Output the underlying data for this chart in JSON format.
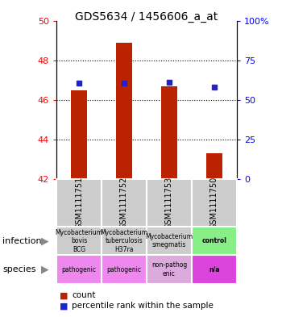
{
  "title": "GDS5634 / 1456606_a_at",
  "samples": [
    "GSM1111751",
    "GSM1111752",
    "GSM1111753",
    "GSM1111750"
  ],
  "bar_bottoms": [
    42,
    42,
    42,
    42
  ],
  "bar_tops": [
    46.5,
    48.9,
    46.7,
    43.3
  ],
  "bar_color": "#bb2200",
  "dot_values": [
    46.85,
    46.85,
    46.9,
    46.65
  ],
  "dot_color": "#2222cc",
  "ylim": [
    42,
    50
  ],
  "yticks_left": [
    42,
    44,
    46,
    48,
    50
  ],
  "yticks_right_labels": [
    "0",
    "25",
    "50",
    "75",
    "100%"
  ],
  "infection_labels": [
    "Mycobacterium bovis BCG",
    "Mycobacterium tuberculosis H37ra",
    "Mycobacterium smegmatis",
    "control"
  ],
  "infection_colors": [
    "#cccccc",
    "#cccccc",
    "#cccccc",
    "#88ee88"
  ],
  "species_labels": [
    "pathogenic",
    "pathogenic",
    "non-pathogenic",
    "n/a"
  ],
  "species_colors": [
    "#ee88ee",
    "#ee88ee",
    "#ddaadd",
    "#dd44dd"
  ],
  "legend_count_color": "#bb2200",
  "legend_pct_color": "#2222cc"
}
